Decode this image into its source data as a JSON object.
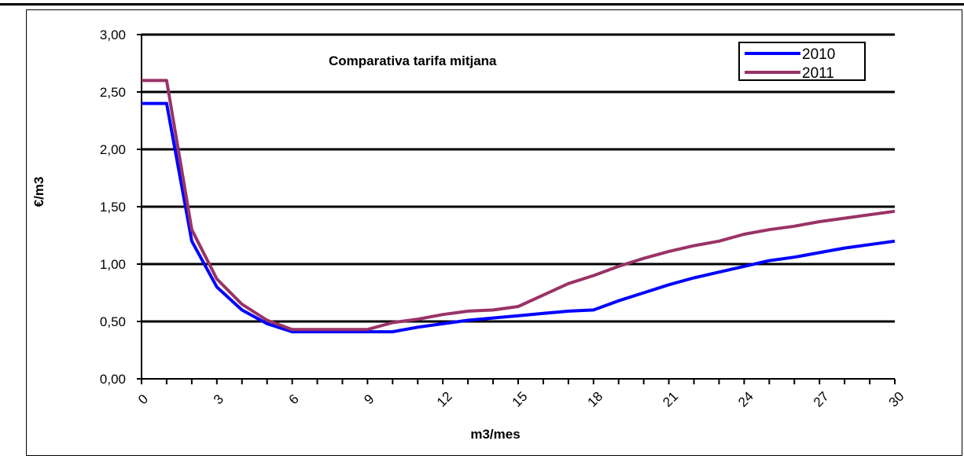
{
  "chart_data": {
    "type": "line",
    "title": "Comparativa tarifa mitjana",
    "xlabel": "m3/mes",
    "ylabel": "€/m3",
    "ylim": [
      0,
      3
    ],
    "xlim": [
      0,
      30
    ],
    "x_ticks": [
      "0",
      "3",
      "6",
      "9",
      "12",
      "15",
      "18",
      "21",
      "24",
      "27",
      "30"
    ],
    "y_ticks": [
      "0,00",
      "0,50",
      "1,00",
      "1,50",
      "2,00",
      "2,50",
      "3,00"
    ],
    "grid": true,
    "legend_position": "top-right",
    "x": [
      0,
      1,
      2,
      3,
      4,
      5,
      6,
      7,
      8,
      9,
      10,
      11,
      12,
      13,
      14,
      15,
      16,
      17,
      18,
      19,
      20,
      21,
      22,
      23,
      24,
      25,
      26,
      27,
      28,
      29,
      30
    ],
    "series": [
      {
        "name": "2010",
        "color": "#0000ff",
        "values": [
          2.4,
          2.4,
          1.2,
          0.8,
          0.6,
          0.48,
          0.41,
          0.41,
          0.41,
          0.41,
          0.41,
          0.45,
          0.48,
          0.51,
          0.53,
          0.55,
          0.57,
          0.59,
          0.6,
          0.68,
          0.75,
          0.82,
          0.88,
          0.93,
          0.98,
          1.03,
          1.06,
          1.1,
          1.14,
          1.17,
          1.2
        ]
      },
      {
        "name": "2011",
        "color": "#993366",
        "values": [
          2.6,
          2.6,
          1.3,
          0.87,
          0.65,
          0.51,
          0.43,
          0.43,
          0.43,
          0.43,
          0.49,
          0.52,
          0.56,
          0.59,
          0.6,
          0.63,
          0.73,
          0.83,
          0.9,
          0.98,
          1.05,
          1.11,
          1.16,
          1.2,
          1.26,
          1.3,
          1.33,
          1.37,
          1.4,
          1.43,
          1.46
        ]
      }
    ]
  }
}
